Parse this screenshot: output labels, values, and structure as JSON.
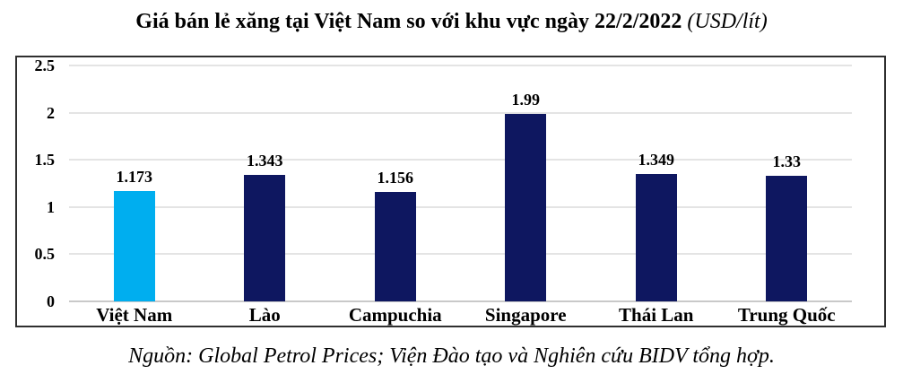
{
  "header": {
    "title_main": "Giá bán lẻ xăng tại Việt Nam so với khu vực ngày 22/2/2022",
    "title_unit": "(USD/lít)"
  },
  "source_note": "Nguồn: Global Petrol Prices; Viện Đào tạo và Nghiên cứu BIDV tổng hợp.",
  "chart_data": {
    "type": "bar",
    "title": "Giá bán lẻ xăng tại Việt Nam so với khu vực ngày 22/2/2022 (USD/lít)",
    "categories": [
      "Việt Nam",
      "Lào",
      "Campuchia",
      "Singapore",
      "Thái Lan",
      "Trung Quốc"
    ],
    "values": [
      1.173,
      1.343,
      1.156,
      1.99,
      1.349,
      1.33
    ],
    "value_labels": [
      "1.173",
      "1.343",
      "1.156",
      "1.99",
      "1.349",
      "1.33"
    ],
    "xlabel": "",
    "ylabel": "",
    "ylim": [
      0,
      2.5
    ],
    "yticks": [
      0,
      0.5,
      1,
      1.5,
      2,
      2.5
    ],
    "ytick_labels": [
      "0",
      "0.5",
      "1",
      "1.5",
      "2",
      "2.5"
    ],
    "grid": true,
    "legend": false,
    "colors": {
      "highlight": "#00AEEF",
      "default": "#0E1760",
      "gridline": "#e4e4e4",
      "baseline": "#c9c9c9",
      "frame_border": "#2f2f2f"
    },
    "highlight_index": 0
  }
}
